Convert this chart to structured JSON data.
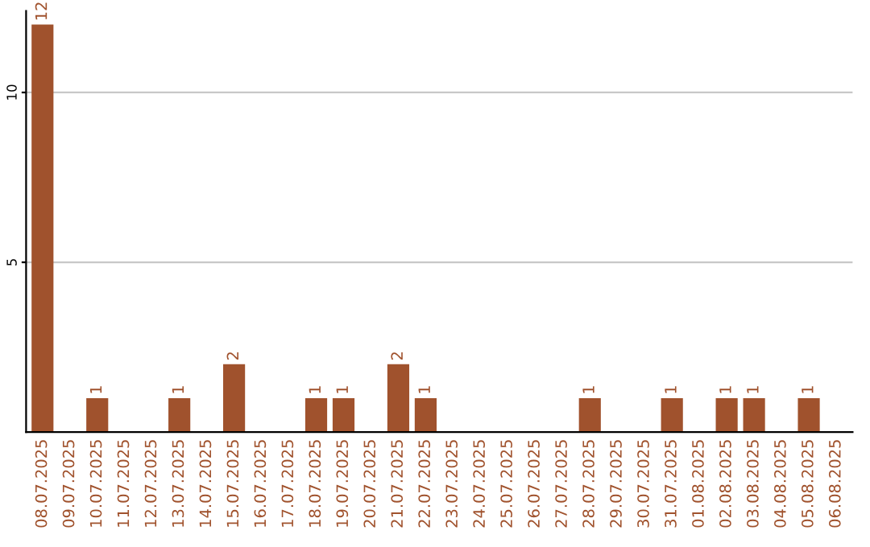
{
  "chart_data": {
    "type": "bar",
    "categories": [
      "08.07.2025",
      "09.07.2025",
      "10.07.2025",
      "11.07.2025",
      "12.07.2025",
      "13.07.2025",
      "14.07.2025",
      "15.07.2025",
      "16.07.2025",
      "17.07.2025",
      "18.07.2025",
      "19.07.2025",
      "20.07.2025",
      "21.07.2025",
      "22.07.2025",
      "23.07.2025",
      "24.07.2025",
      "25.07.2025",
      "26.07.2025",
      "27.07.2025",
      "28.07.2025",
      "29.07.2025",
      "30.07.2025",
      "31.07.2025",
      "01.08.2025",
      "02.08.2025",
      "03.08.2025",
      "04.08.2025",
      "05.08.2025",
      "06.08.2025"
    ],
    "values": [
      12,
      0,
      1,
      0,
      0,
      1,
      0,
      2,
      0,
      0,
      1,
      1,
      0,
      2,
      1,
      0,
      0,
      0,
      0,
      0,
      1,
      0,
      0,
      1,
      0,
      1,
      1,
      0,
      1,
      0
    ],
    "value_labels": [
      "12",
      null,
      "1",
      null,
      null,
      "1",
      null,
      "2",
      null,
      null,
      "1",
      "1",
      null,
      "2",
      "1",
      null,
      null,
      null,
      null,
      null,
      "1",
      null,
      null,
      "1",
      null,
      "1",
      "1",
      null,
      "1",
      null
    ],
    "color": "#a0522d",
    "ylim": [
      0,
      12.4
    ],
    "yticks": [
      5,
      10
    ],
    "grid": "y"
  }
}
